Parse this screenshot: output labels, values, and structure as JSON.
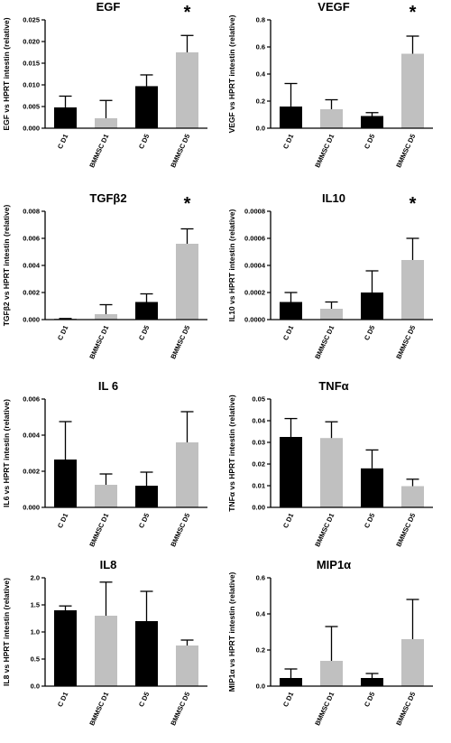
{
  "chart_data": [
    {
      "type": "bar",
      "title": "EGF",
      "ylabel": "EGF vs HPRT intestin (relative)",
      "categories": [
        "C D1",
        "BMMSC D1",
        "C D5",
        "BMMSC D5"
      ],
      "values": [
        0.0048,
        0.0023,
        0.0097,
        0.0175
      ],
      "errors": [
        0.0026,
        0.0041,
        0.0026,
        0.0039
      ],
      "colors": [
        "#000000",
        "#c0c0c0",
        "#000000",
        "#c0c0c0"
      ],
      "ylim": [
        0,
        0.025
      ],
      "yticks": [
        "0.000",
        "0.005",
        "0.010",
        "0.015",
        "0.020",
        "0.025"
      ],
      "annotation": "*",
      "annotation_index": 3
    },
    {
      "type": "bar",
      "title": "VEGF",
      "ylabel": "VEGF vs HPRT intestin (relative)",
      "categories": [
        "C D1",
        "BMMSC D1",
        "C D5",
        "BMMSC D5"
      ],
      "values": [
        0.16,
        0.14,
        0.09,
        0.55
      ],
      "errors": [
        0.17,
        0.07,
        0.025,
        0.13
      ],
      "colors": [
        "#000000",
        "#c0c0c0",
        "#000000",
        "#c0c0c0"
      ],
      "ylim": [
        0,
        0.8
      ],
      "yticks": [
        "0.0",
        "0.2",
        "0.4",
        "0.6",
        "0.8"
      ],
      "annotation": "*",
      "annotation_index": 3
    },
    {
      "type": "bar",
      "title": "TGFβ2",
      "ylabel": "TGFβ2 vs HPRT intestin (relative)",
      "categories": [
        "C D1",
        "BMMSC D1",
        "C D5",
        "BMMSC D5"
      ],
      "values": [
        5e-05,
        0.0004,
        0.0013,
        0.0056
      ],
      "errors": [
        3e-05,
        0.0007,
        0.0006,
        0.0011
      ],
      "colors": [
        "#000000",
        "#c0c0c0",
        "#000000",
        "#c0c0c0"
      ],
      "ylim": [
        0,
        0.008
      ],
      "yticks": [
        "0.000",
        "0.002",
        "0.004",
        "0.006",
        "0.008"
      ],
      "annotation": "*",
      "annotation_index": 3
    },
    {
      "type": "bar",
      "title": "IL10",
      "ylabel": "IL10 vs HPRT intestin (relative)",
      "categories": [
        "C D1",
        "BMMSC D1",
        "C D5",
        "BMMSC D5"
      ],
      "values": [
        0.00013,
        8e-05,
        0.0002,
        0.00044
      ],
      "errors": [
        7e-05,
        5e-05,
        0.00016,
        0.00016
      ],
      "colors": [
        "#000000",
        "#c0c0c0",
        "#000000",
        "#c0c0c0"
      ],
      "ylim": [
        0,
        0.0008
      ],
      "yticks": [
        "0.0000",
        "0.0002",
        "0.0004",
        "0.0006",
        "0.0008"
      ],
      "annotation": "*",
      "annotation_index": 3
    },
    {
      "type": "bar",
      "title": "IL 6",
      "ylabel": "IL6 vs HPRT intestin (relative)",
      "categories": [
        "C D1",
        "BMMSC D1",
        "C D5",
        "BMMSC D5"
      ],
      "values": [
        0.00265,
        0.00125,
        0.0012,
        0.0036
      ],
      "errors": [
        0.0021,
        0.0006,
        0.00075,
        0.0017
      ],
      "colors": [
        "#000000",
        "#c0c0c0",
        "#000000",
        "#c0c0c0"
      ],
      "ylim": [
        0,
        0.006
      ],
      "yticks": [
        "0.000",
        "0.002",
        "0.004",
        "0.006"
      ]
    },
    {
      "type": "bar",
      "title": "TNFα",
      "ylabel": "TNFα vs HPRT intestin (relative)",
      "categories": [
        "C D1",
        "BMMSC D1",
        "C D5",
        "BMMSC D5"
      ],
      "values": [
        0.0325,
        0.032,
        0.018,
        0.0098
      ],
      "errors": [
        0.0085,
        0.0075,
        0.0085,
        0.0032
      ],
      "colors": [
        "#000000",
        "#c0c0c0",
        "#000000",
        "#c0c0c0"
      ],
      "ylim": [
        0,
        0.05
      ],
      "yticks": [
        "0.00",
        "0.01",
        "0.02",
        "0.03",
        "0.04",
        "0.05"
      ]
    },
    {
      "type": "bar",
      "title": "IL8",
      "ylabel": "IL8 vs HPRT intestin (relative)",
      "categories": [
        "C D1",
        "BMMSC D1",
        "C D5",
        "BMMSC D5"
      ],
      "values": [
        1.4,
        1.3,
        1.2,
        0.75
      ],
      "errors": [
        0.08,
        0.62,
        0.55,
        0.1
      ],
      "colors": [
        "#000000",
        "#c0c0c0",
        "#000000",
        "#c0c0c0"
      ],
      "ylim": [
        0,
        2.0
      ],
      "yticks": [
        "0.0",
        "0.5",
        "1.0",
        "1.5",
        "2.0"
      ]
    },
    {
      "type": "bar",
      "title": "MIP1α",
      "ylabel": "MIP1α vs HPRT intestin (relative)",
      "categories": [
        "C D1",
        "BMMSC D1",
        "C D5",
        "BMMSC D5"
      ],
      "values": [
        0.045,
        0.14,
        0.045,
        0.26
      ],
      "errors": [
        0.05,
        0.19,
        0.025,
        0.22
      ],
      "colors": [
        "#000000",
        "#c0c0c0",
        "#000000",
        "#c0c0c0"
      ],
      "ylim": [
        0,
        0.6
      ],
      "yticks": [
        "0.0",
        "0.2",
        "0.4",
        "0.6"
      ]
    }
  ]
}
